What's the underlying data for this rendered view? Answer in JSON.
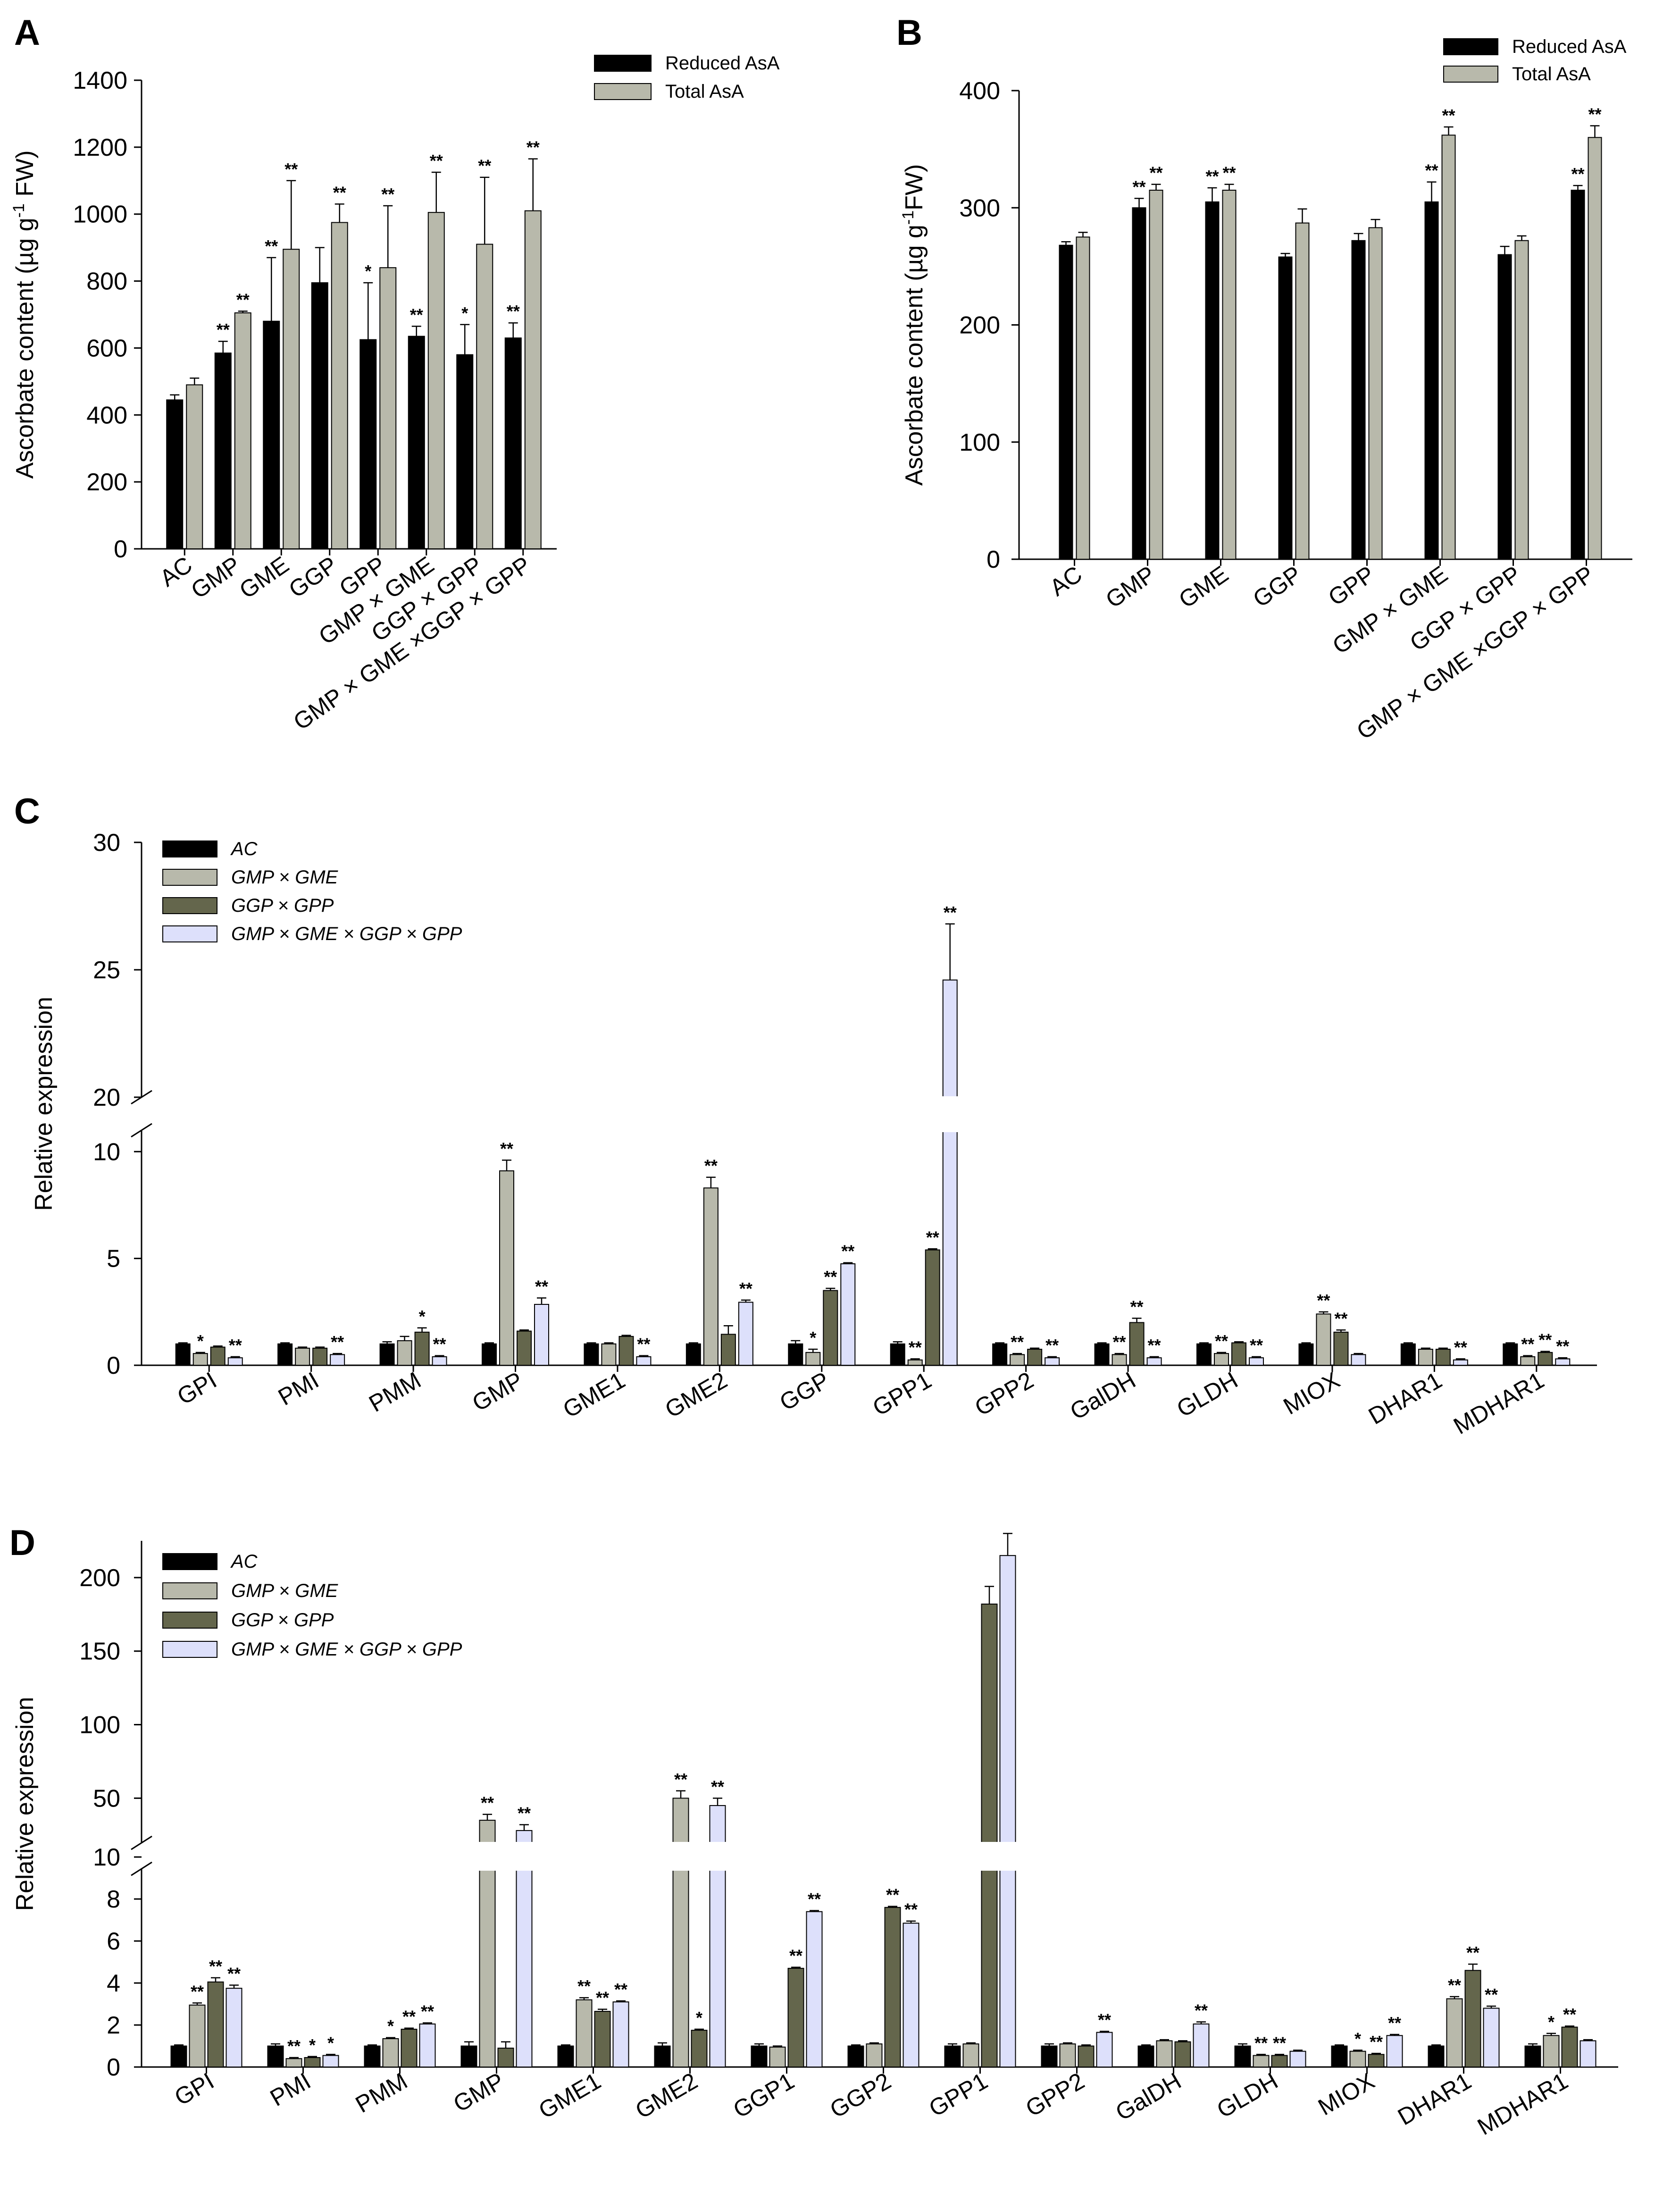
{
  "colors": {
    "black": "#000000",
    "grey": "#b8b9ab",
    "olive": "#64664c",
    "lavender": "#dde0fb"
  },
  "chart_data": [
    {
      "panel": "A",
      "type": "bar",
      "ylabel_pre": "Ascorbate content (",
      "ylabel_mu": "µg g",
      "ylabel_sup": "-1",
      "ylabel_post": " FW)",
      "ylim": [
        0,
        1400
      ],
      "yticks": [
        "0",
        "200",
        "400",
        "600",
        "800",
        "1000",
        "1200",
        "1400"
      ],
      "categories": [
        "AC",
        "GMP",
        "GME",
        "GGP",
        "GPP",
        "GMP × GME",
        "GGP × GPP",
        "GMP × GME ×GGP × GPP"
      ],
      "series": [
        {
          "name": "Reduced AsA",
          "color": "black",
          "values": [
            445,
            585,
            680,
            795,
            625,
            635,
            580,
            630
          ],
          "errors": [
            15,
            35,
            190,
            105,
            170,
            30,
            90,
            45
          ],
          "sig": [
            "",
            "**",
            "**",
            "",
            "*",
            "**",
            "*",
            "**"
          ]
        },
        {
          "name": "Total AsA",
          "color": "grey",
          "values": [
            490,
            705,
            895,
            975,
            840,
            1005,
            910,
            1010
          ],
          "errors": [
            20,
            5,
            205,
            55,
            185,
            120,
            200,
            155
          ],
          "sig": [
            "",
            "**",
            "**",
            "**",
            "**",
            "**",
            "**",
            "**"
          ]
        }
      ]
    },
    {
      "panel": "B",
      "type": "bar",
      "ylabel_pre": "Ascorbate content (",
      "ylabel_mu": "µg g",
      "ylabel_sup": "-1",
      "ylabel_post": "FW)",
      "ylim": [
        0,
        400
      ],
      "yticks": [
        "0",
        "100",
        "200",
        "300",
        "400"
      ],
      "categories": [
        "AC",
        "GMP",
        "GME",
        "GGP",
        "GPP",
        "GMP × GME",
        "GGP × GPP",
        "GMP × GME ×GGP × GPP"
      ],
      "series": [
        {
          "name": "Reduced AsA",
          "color": "black",
          "values": [
            268,
            300,
            305,
            258,
            272,
            305,
            260,
            315
          ],
          "errors": [
            3,
            8,
            12,
            3,
            6,
            17,
            7,
            4
          ],
          "sig": [
            "",
            "**",
            "**",
            "",
            "",
            "**",
            "",
            "**"
          ]
        },
        {
          "name": "Total AsA",
          "color": "grey",
          "values": [
            275,
            315,
            315,
            287,
            283,
            362,
            272,
            360
          ],
          "errors": [
            4,
            5,
            5,
            12,
            7,
            7,
            4,
            10
          ],
          "sig": [
            "",
            "**",
            "**",
            "",
            "",
            "**",
            "",
            "**"
          ]
        }
      ]
    },
    {
      "panel": "C",
      "type": "bar",
      "ylabel": "Relative expression",
      "axis_break": true,
      "lower_range": [
        0,
        11
      ],
      "upper_range": [
        20,
        30
      ],
      "yticks_lower": [
        "0",
        "5",
        "10"
      ],
      "yticks_upper": [
        "20",
        "25",
        "30"
      ],
      "categories": [
        "GPI",
        "PMI",
        "PMM",
        "GMP",
        "GME1",
        "GME2",
        "GGP",
        "GPP1",
        "GPP2",
        "GalDH",
        "GLDH",
        "MIOX",
        "DHAR1",
        "MDHAR1"
      ],
      "series": [
        {
          "name": "AC",
          "color": "black",
          "values": [
            1,
            1,
            1,
            1,
            1,
            1,
            1,
            1,
            1,
            1,
            1,
            1,
            1,
            1
          ],
          "errors": [
            0.05,
            0.05,
            0.1,
            0.05,
            0.05,
            0.05,
            0.15,
            0.1,
            0.05,
            0.05,
            0.05,
            0.05,
            0.05,
            0.05
          ],
          "sig": [
            "",
            "",
            "",
            "",
            "",
            "",
            "",
            "",
            "",
            "",
            "",
            "",
            "",
            ""
          ]
        },
        {
          "name": "GMP × GME",
          "color": "grey",
          "values": [
            0.55,
            0.8,
            1.15,
            9.1,
            1.0,
            8.3,
            0.6,
            0.25,
            0.5,
            0.5,
            0.55,
            2.4,
            0.75,
            0.4
          ],
          "errors": [
            0.05,
            0.05,
            0.2,
            0.5,
            0.05,
            0.5,
            0.15,
            0.05,
            0.05,
            0.05,
            0.05,
            0.1,
            0.05,
            0.05
          ],
          "sig": [
            "*",
            "",
            "",
            "**",
            "",
            "**",
            "*",
            "**",
            "**",
            "**",
            "**",
            "**",
            "",
            "**"
          ]
        },
        {
          "name": "GGP × GPP",
          "color": "olive",
          "values": [
            0.85,
            0.8,
            1.55,
            1.6,
            1.35,
            1.45,
            3.5,
            5.4,
            0.75,
            2.0,
            1.05,
            1.55,
            0.75,
            0.6
          ],
          "errors": [
            0.05,
            0.05,
            0.2,
            0.05,
            0.05,
            0.4,
            0.1,
            0.05,
            0.05,
            0.2,
            0.05,
            0.1,
            0.05,
            0.05
          ],
          "sig": [
            "",
            "",
            "*",
            "",
            "",
            "",
            "**",
            "**",
            "",
            "**",
            "",
            "**",
            "",
            "**"
          ]
        },
        {
          "name": "GMP × GME × GGP × GPP",
          "color": "lavender",
          "values": [
            0.35,
            0.5,
            0.4,
            2.85,
            0.4,
            2.95,
            4.75,
            24.6,
            0.35,
            0.35,
            0.35,
            0.5,
            0.25,
            0.3
          ],
          "errors": [
            0.05,
            0.05,
            0.05,
            0.3,
            0.05,
            0.1,
            0.05,
            2.2,
            0.05,
            0.05,
            0.05,
            0.05,
            0.05,
            0.05
          ],
          "sig": [
            "**",
            "**",
            "**",
            "**",
            "**",
            "**",
            "**",
            "**",
            "**",
            "**",
            "**",
            "",
            "**",
            "**"
          ]
        }
      ]
    },
    {
      "panel": "D",
      "type": "bar",
      "ylabel": "Relative expression",
      "axis_break": true,
      "lower_range": [
        0,
        10
      ],
      "upper_range": [
        10,
        225
      ],
      "yticks_lower": [
        "0",
        "2",
        "4",
        "6",
        "8",
        "10"
      ],
      "yticks_upper": [
        "50",
        "100",
        "150",
        "200"
      ],
      "categories": [
        "GPI",
        "PMI",
        "PMM",
        "GMP",
        "GME1",
        "GME2",
        "GGP1",
        "GGP2",
        "GPP1",
        "GPP2",
        "GalDH",
        "GLDH",
        "MIOX",
        "DHAR1",
        "MDHAR1"
      ],
      "series": [
        {
          "name": "AC",
          "color": "black",
          "values": [
            1,
            1,
            1,
            1,
            1,
            1,
            1,
            1,
            1,
            1,
            1,
            1,
            1,
            1,
            1
          ],
          "errors": [
            0.05,
            0.1,
            0.05,
            0.2,
            0.05,
            0.15,
            0.1,
            0.05,
            0.1,
            0.1,
            0.05,
            0.1,
            0.05,
            0.05,
            0.1
          ],
          "sig": [
            "",
            "",
            "",
            "",
            "",
            "",
            "",
            "",
            "",
            "",
            "",
            "",
            "",
            "",
            ""
          ]
        },
        {
          "name": "GMP × GME",
          "color": "grey",
          "values": [
            2.95,
            0.4,
            1.35,
            35,
            3.2,
            50,
            0.95,
            1.1,
            1.1,
            1.1,
            1.25,
            0.55,
            0.75,
            3.25,
            1.5
          ],
          "errors": [
            0.1,
            0.05,
            0.05,
            4,
            0.1,
            5,
            0.05,
            0.05,
            0.05,
            0.05,
            0.05,
            0.05,
            0.05,
            0.1,
            0.1
          ],
          "sig": [
            "**",
            "**",
            "*",
            "**",
            "**",
            "**",
            "",
            "",
            "",
            "",
            "",
            "**",
            "*",
            "**",
            "*"
          ]
        },
        {
          "name": "GGP × GPP",
          "color": "olive",
          "values": [
            4.05,
            0.45,
            1.8,
            0.9,
            2.65,
            1.75,
            4.7,
            7.6,
            182,
            1.0,
            1.2,
            0.55,
            0.6,
            4.6,
            1.9
          ],
          "errors": [
            0.2,
            0.05,
            0.05,
            0.3,
            0.1,
            0.05,
            0.05,
            0.05,
            12,
            0.05,
            0.05,
            0.05,
            0.05,
            0.3,
            0.05
          ],
          "sig": [
            "**",
            "*",
            "**",
            "",
            "**",
            "*",
            "**",
            "**",
            "",
            "",
            "",
            "**",
            "**",
            "**",
            "**"
          ]
        },
        {
          "name": "GMP × GME × GGP × GPP",
          "color": "lavender",
          "values": [
            3.75,
            0.55,
            2.05,
            28,
            3.1,
            45,
            7.4,
            6.85,
            215,
            1.65,
            2.05,
            0.75,
            1.5,
            2.8,
            1.25
          ],
          "errors": [
            0.15,
            0.05,
            0.05,
            4,
            0.05,
            5,
            0.05,
            0.1,
            15,
            0.05,
            0.1,
            0.05,
            0.05,
            0.1,
            0.05
          ],
          "sig": [
            "**",
            "*",
            "**",
            "**",
            "**",
            "**",
            "**",
            "**",
            "",
            "**",
            "**",
            "",
            "**",
            "**",
            ""
          ]
        }
      ]
    }
  ]
}
